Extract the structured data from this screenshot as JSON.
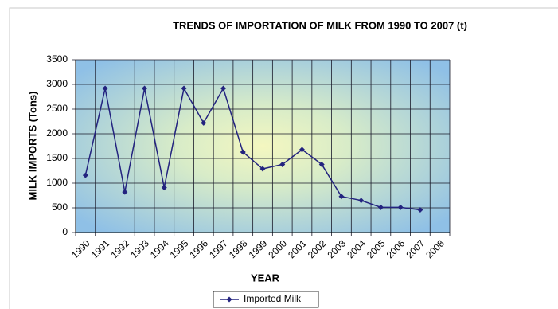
{
  "chart_data": {
    "type": "line",
    "title": "TRENDS OF IMPORTATION OF MILK FROM 1990 TO 2007 (t)",
    "x_label": "YEAR",
    "y_label": "MILK IMPORTS (Tons)",
    "categories": [
      "1990",
      "1991",
      "1992",
      "1993",
      "1994",
      "1995",
      "1996",
      "1997",
      "1998",
      "1999",
      "2000",
      "2001",
      "2002",
      "2003",
      "2004",
      "2005",
      "2006",
      "2007",
      "2008"
    ],
    "series": [
      {
        "name": "Imported Milk",
        "color": "#23237f",
        "values": [
          1160,
          2920,
          820,
          2920,
          910,
          2920,
          2220,
          2920,
          1630,
          1290,
          1380,
          1680,
          1380,
          730,
          650,
          510,
          510,
          460,
          null
        ]
      }
    ],
    "ylim": [
      0,
      3500
    ],
    "yticks": [
      0,
      500,
      1000,
      1500,
      2000,
      2500,
      3000,
      3500
    ],
    "grid": true,
    "legend": "bottom"
  }
}
